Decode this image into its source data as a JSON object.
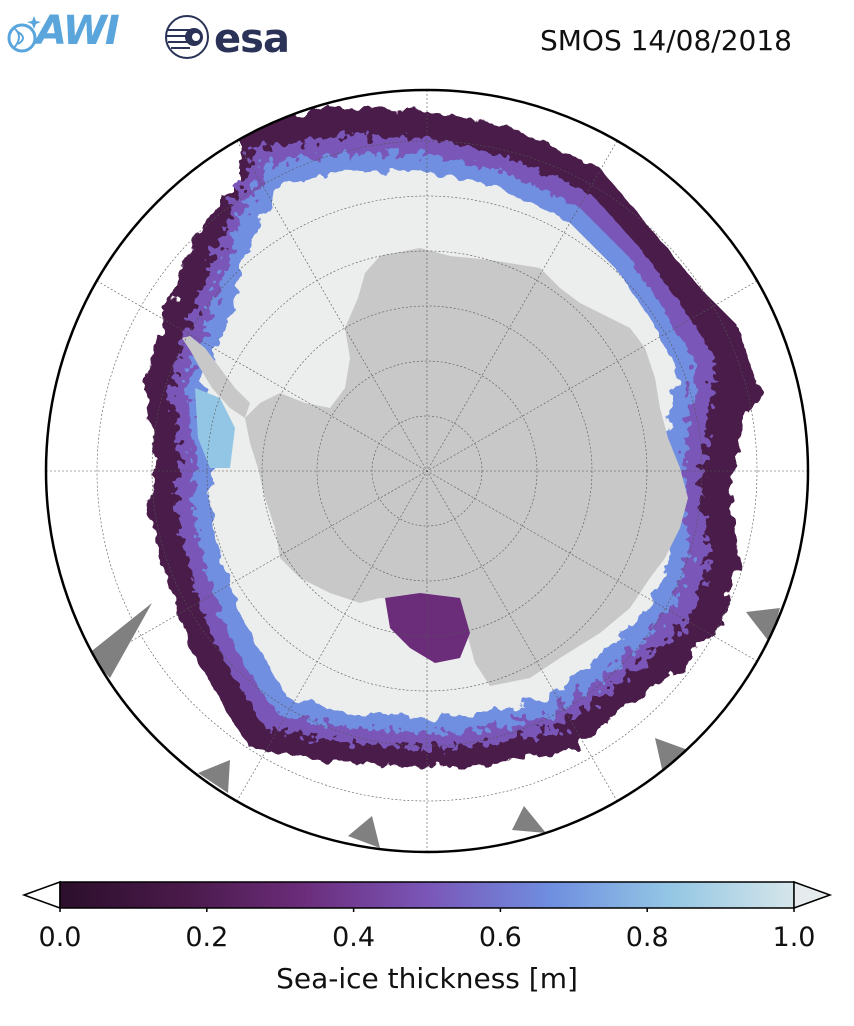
{
  "title": "SMOS 14/08/2018",
  "logos": {
    "awi": "AWI",
    "esa": "esa"
  },
  "colorbar": {
    "label": "Sea-ice thickness [m]",
    "ticks": [
      "0.0",
      "0.2",
      "0.4",
      "0.6",
      "0.8",
      "1.0"
    ],
    "colors": [
      "#2b0f2b",
      "#4a1a4a",
      "#6b2c7a",
      "#7a56b8",
      "#6f8fe0",
      "#93c6e4",
      "#d5e6ea"
    ]
  },
  "map": {
    "projection": "south-polar-stereographic",
    "land_color": "#c8c8c8",
    "thick_ice_color": "#eceded",
    "outline_color": "#000000"
  }
}
